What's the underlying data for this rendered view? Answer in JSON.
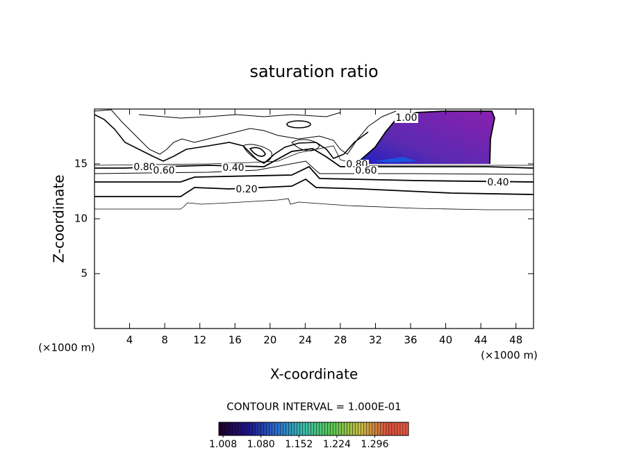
{
  "chart_data": {
    "type": "contour",
    "title": "saturation ratio",
    "x_label": "X-coordinate",
    "y_label": "Z-coordinate",
    "x_unit": "(×1000 m)",
    "y_unit": "(×1000 m)",
    "xlim": [
      0,
      50
    ],
    "xticks": [
      4,
      8,
      12,
      16,
      20,
      24,
      28,
      32,
      36,
      40,
      44,
      48
    ],
    "ylim": [
      0,
      20
    ],
    "yticks": [
      5,
      10,
      15
    ],
    "contour_labels": [
      {
        "value": 0.8,
        "label": "0.80"
      },
      {
        "value": 0.6,
        "label": "0.60"
      },
      {
        "value": 0.4,
        "label": "0.40"
      },
      {
        "value": 0.2,
        "label": "0.20"
      },
      {
        "value": 1.0,
        "label": "1.00"
      },
      {
        "value": 0.8,
        "label": "0.80"
      },
      {
        "value": 0.6,
        "label": "0.60"
      },
      {
        "value": 0.4,
        "label": "0.40"
      }
    ],
    "contour_interval_label": "CONTOUR INTERVAL = 1.000E-01",
    "colorbar_lim": [
      1.0,
      1.36
    ],
    "colorbar_ticks": [
      {
        "value": 1.008,
        "label": "1.008"
      },
      {
        "value": 1.08,
        "label": "1.080"
      },
      {
        "value": 1.152,
        "label": "1.152"
      },
      {
        "value": 1.224,
        "label": "1.224"
      },
      {
        "value": 1.296,
        "label": "1.296"
      }
    ]
  }
}
